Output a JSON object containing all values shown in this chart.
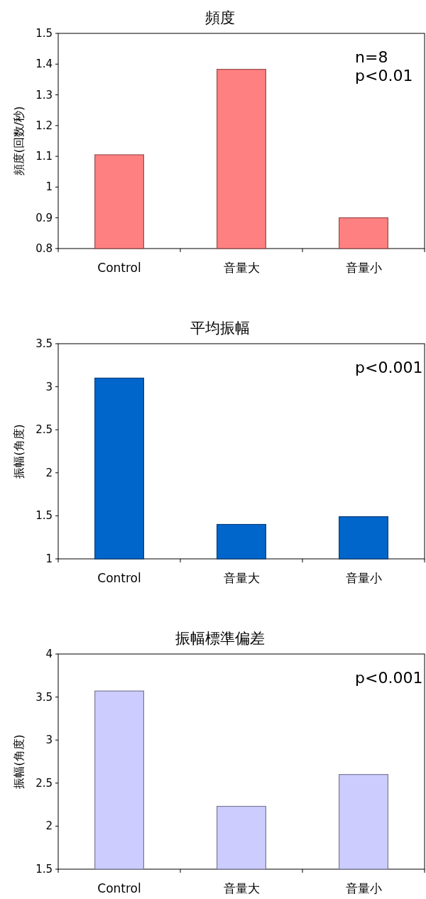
{
  "chart_data": [
    {
      "type": "bar",
      "title": "頻度",
      "ylabel": "頻度(回数/秒)",
      "categories": [
        "Control",
        "音量大",
        "音量小"
      ],
      "values": [
        1.105,
        1.383,
        0.9
      ],
      "color": "#ff8080",
      "ylim": [
        0.8,
        1.5
      ],
      "yticks": [
        0.8,
        0.9,
        1,
        1.1,
        1.2,
        1.3,
        1.4,
        1.5
      ],
      "annotations": [
        "n=8",
        "p<0.01"
      ]
    },
    {
      "type": "bar",
      "title": "平均振幅",
      "ylabel": "振幅(角度)",
      "categories": [
        "Control",
        "音量大",
        "音量小"
      ],
      "values": [
        3.1,
        1.4,
        1.49
      ],
      "color": "#0066cc",
      "ylim": [
        1,
        3.5
      ],
      "yticks": [
        1,
        1.5,
        2,
        2.5,
        3,
        3.5
      ],
      "annotations": [
        "p<0.001"
      ]
    },
    {
      "type": "bar",
      "title": "振幅標準偏差",
      "ylabel": "振幅(角度)",
      "categories": [
        "Control",
        "音量大",
        "音量小"
      ],
      "values": [
        3.57,
        2.23,
        2.6
      ],
      "color": "#ccccff",
      "ylim": [
        1.5,
        4
      ],
      "yticks": [
        1.5,
        2,
        2.5,
        3,
        3.5,
        4
      ],
      "annotations": [
        "p<0.001"
      ]
    }
  ]
}
